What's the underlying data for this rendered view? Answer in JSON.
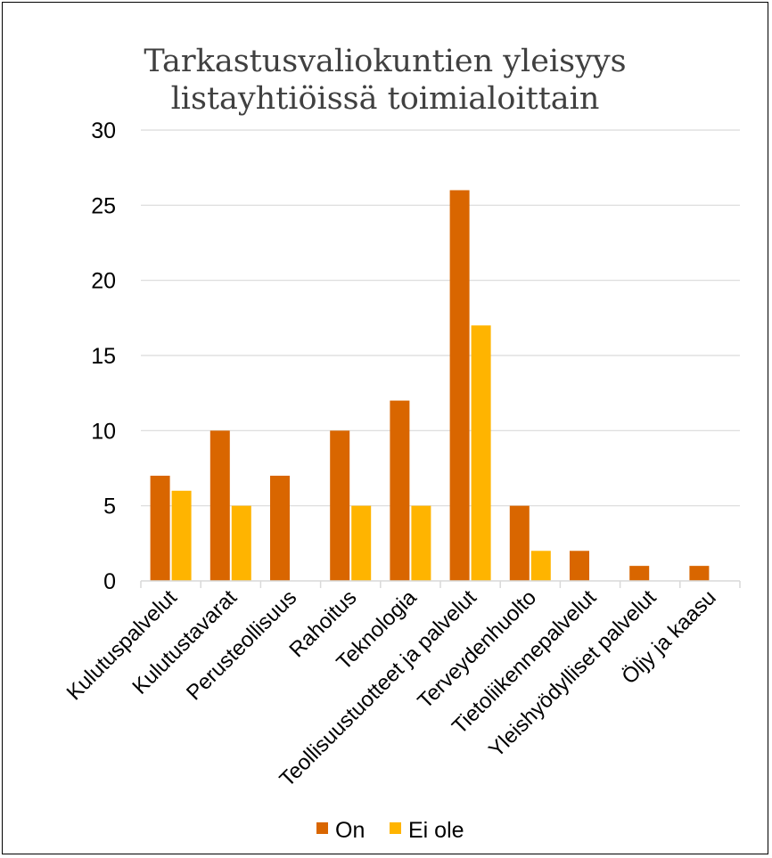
{
  "chart_data": {
    "type": "bar",
    "title_lines": [
      "Tarkastusvaliokuntien yleisyys",
      "listayhtiöissä toimialoittain"
    ],
    "categories": [
      "Kulutuspalvelut",
      "Kulutustavarat",
      "Perusteollisuus",
      "Rahoitus",
      "Teknologia",
      "Teollisuustuotteet ja palvelut",
      "Terveydenhuolto",
      "Tietoliikennepalvelut",
      "Yleishyödylliset palvelut",
      "Öljy ja kaasu"
    ],
    "series": [
      {
        "name": "On",
        "color": "#D96600",
        "values": [
          7,
          10,
          7,
          10,
          12,
          26,
          5,
          2,
          1,
          1
        ]
      },
      {
        "name": "Ei ole",
        "color": "#FFB400",
        "values": [
          6,
          5,
          0,
          5,
          5,
          17,
          2,
          0,
          0,
          0
        ]
      }
    ],
    "ylim": [
      0,
      30
    ],
    "yticks": [
      "0",
      "5",
      "10",
      "15",
      "20",
      "25",
      "30"
    ],
    "grid": true,
    "legend_position": "bottom"
  }
}
